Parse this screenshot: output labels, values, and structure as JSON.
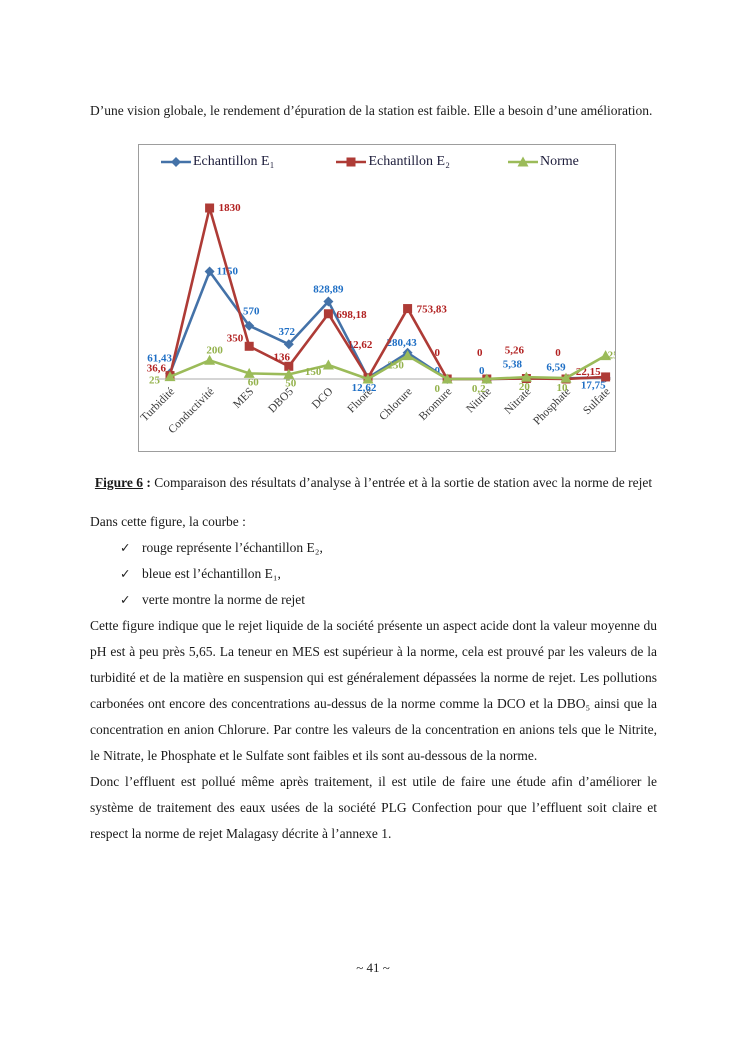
{
  "page": {
    "intro_paragraph": "D’une vision globale, le rendement d’épuration de la station est faible. Elle a besoin d’une amélioration.",
    "caption": {
      "label": "Figure 6",
      "separator": " : ",
      "text": "Comparaison des résultats d’analyse à l’entrée et à la sortie de station avec la norme de rejet"
    },
    "legend_intro": "Dans cette figure, la courbe :",
    "bullets": [
      "rouge représente l’échantillon E₂,",
      "bleue est l’échantillon E₁,",
      "verte montre la norme de rejet"
    ],
    "body_paragraph_1": "Cette figure indique que le rejet liquide de la société présente un aspect acide dont la valeur moyenne du pH est à peu près 5,65. La teneur en MES est supérieur à la norme, cela est prouvé par les valeurs de la turbidité et de la matière en suspension qui est généralement dépassées la norme de rejet. Les pollutions carbonées ont encore des concentrations au-dessus de la norme comme la DCO et la DBO₅ ainsi que la concentration en anion Chlorure. Par contre les valeurs de la concentration en anions tels que le Nitrite, le Nitrate, le Phosphate et le Sulfate sont faibles et ils sont au-dessous de la norme.",
    "body_paragraph_2": "Donc l’effluent est pollué même après traitement, il est utile de faire une étude afin d’améliorer le système de traitement des eaux usées de la société PLG Confection pour que l’effluent soit claire et respect la norme de rejet Malagasy décrite à l’annexe 1.",
    "page_number": "~ 41 ~"
  },
  "chart_data": {
    "type": "line",
    "title": "",
    "legend_position": "top",
    "grid": false,
    "ylim": [
      0,
      1830
    ],
    "categories": [
      "Turbidité",
      "Conductivité",
      "MES",
      "DBO5",
      "DCO",
      "Fluore",
      "Chlorure",
      "Bromure",
      "Nitrite",
      "Nitrate",
      "Phosphate",
      "Sulfate"
    ],
    "series": [
      {
        "name": "Echantillon E₁",
        "marker": "diamond",
        "color": "#4472A8",
        "label_color": "#1F6FC5",
        "values": [
          61.43,
          1150,
          570,
          372,
          828.89,
          12.62,
          280.43,
          0,
          0,
          5.38,
          6.59,
          17.75
        ],
        "labels": [
          "61,43",
          "1150",
          "570",
          "372",
          "828,89",
          "12,62",
          "280,43",
          "0",
          "0",
          "5,38",
          "6,59",
          "17,75"
        ]
      },
      {
        "name": "Echantillon E₂",
        "marker": "square",
        "color": "#AE3B36",
        "label_color": "#B22222",
        "values": [
          36.6,
          1830,
          350,
          136,
          698.18,
          12.62,
          753.83,
          0,
          0,
          5.26,
          0,
          22.15
        ],
        "labels": [
          "36,6",
          "1830",
          "350",
          "136",
          "698,18",
          "12,62",
          "753,83",
          "0",
          "0",
          "5,26",
          "0",
          "22,15"
        ]
      },
      {
        "name": "Norme",
        "marker": "triangle",
        "color": "#9BBB59",
        "label_color": "#94B24C",
        "values": [
          25,
          200,
          60,
          50,
          150,
          0,
          250,
          0,
          0.2,
          20,
          10,
          250
        ],
        "labels": [
          "25",
          "200",
          "60",
          "50",
          "150",
          "",
          "250",
          "0",
          "0,2",
          "20",
          "10",
          "250"
        ]
      }
    ]
  }
}
